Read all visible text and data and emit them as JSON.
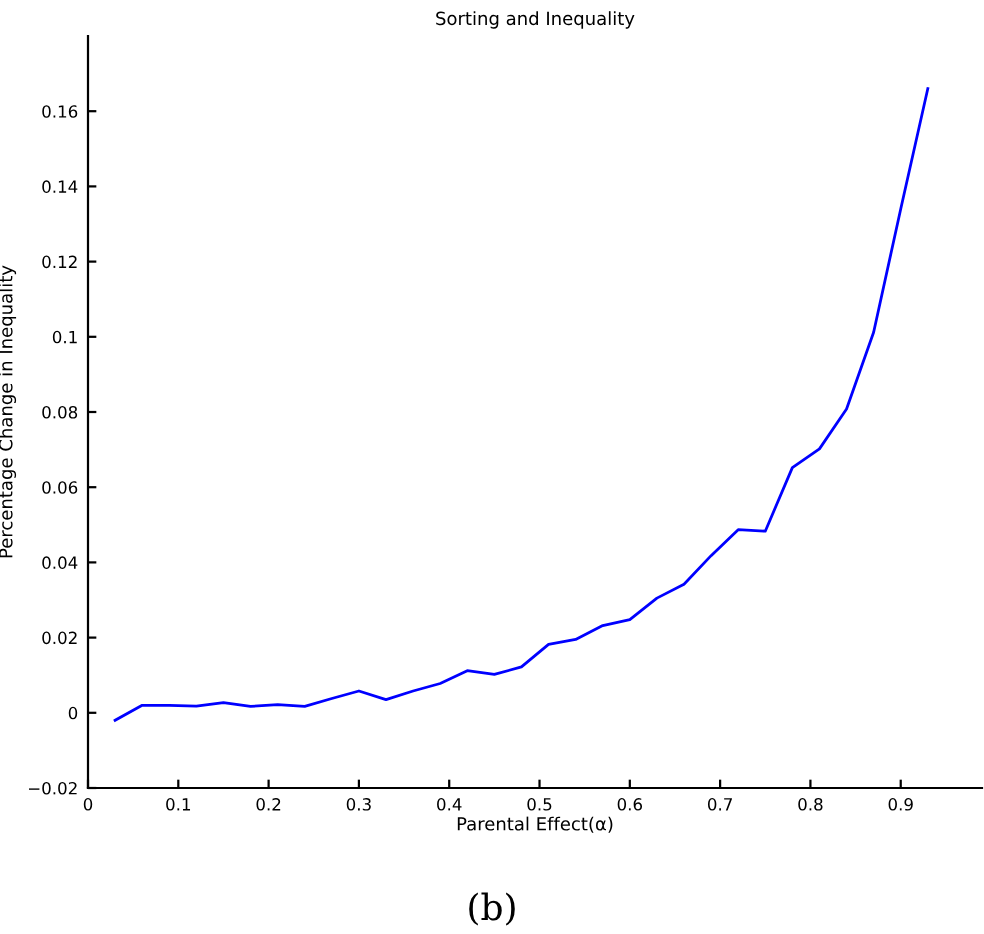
{
  "chart_data": {
    "type": "line",
    "title": "Sorting and Inequality",
    "xlabel": "Parental Effect(α)",
    "ylabel": "Percentage Change in Inequality",
    "x": [
      0.03,
      0.06,
      0.09,
      0.12,
      0.15,
      0.18,
      0.21,
      0.24,
      0.27,
      0.3,
      0.33,
      0.36,
      0.39,
      0.42,
      0.45,
      0.48,
      0.51,
      0.54,
      0.57,
      0.6,
      0.63,
      0.66,
      0.69,
      0.72,
      0.75,
      0.78,
      0.81,
      0.84,
      0.87,
      0.9,
      0.93
    ],
    "series": [
      {
        "color": "#0000ff",
        "values": [
          -0.002,
          0.002,
          0.002,
          0.0018,
          0.0027,
          0.0017,
          0.0022,
          0.0017,
          0.0038,
          0.0058,
          0.0035,
          0.0058,
          0.0078,
          0.0112,
          0.0102,
          0.0122,
          0.0182,
          0.0195,
          0.0232,
          0.0248,
          0.0305,
          0.0342,
          0.0418,
          0.0487,
          0.0483,
          0.0652,
          0.0702,
          0.0808,
          0.1012,
          0.134,
          0.166
        ]
      }
    ],
    "xlim": [
      0,
      0.99
    ],
    "ylim": [
      -0.02,
      0.18
    ],
    "xticks": [
      0,
      0.1,
      0.2,
      0.3,
      0.4,
      0.5,
      0.6,
      0.7,
      0.8,
      0.9
    ],
    "yticks": [
      -0.02,
      0,
      0.02,
      0.04,
      0.06,
      0.08,
      0.1,
      0.12,
      0.14,
      0.16
    ],
    "grid": false,
    "legend": false,
    "marker": "none",
    "line_style": "solid",
    "annotations": [
      "(b)"
    ]
  }
}
